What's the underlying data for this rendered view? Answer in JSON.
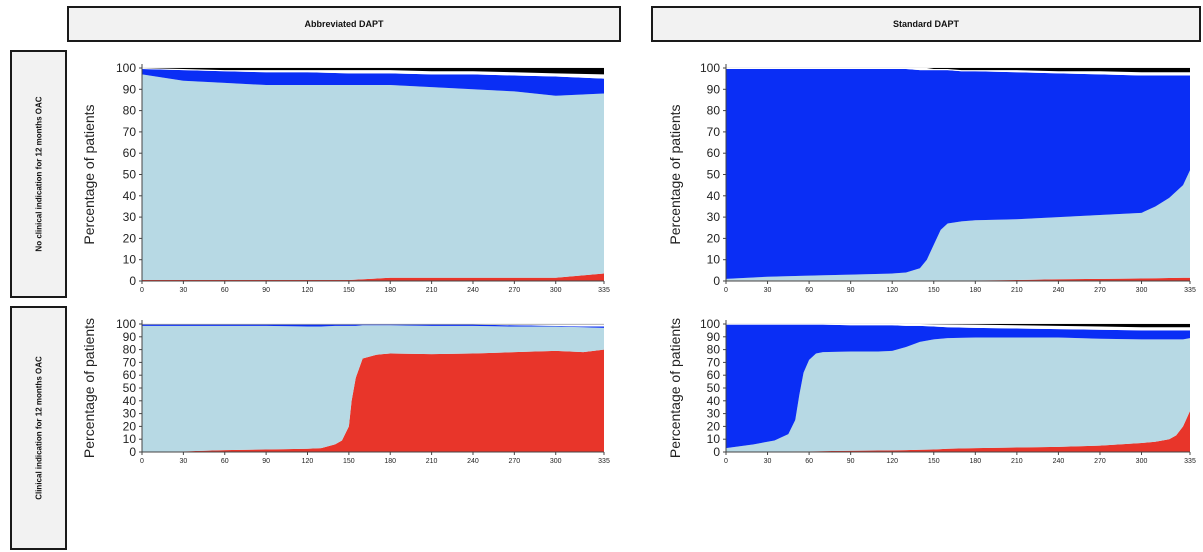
{
  "columns": [
    "Abbreviated DAPT",
    "Standard DAPT"
  ],
  "rows": [
    "No clinical indication for 12 months OAC",
    "Clinical indication for 12 months OAC"
  ],
  "colors": {
    "red": "#e8352a",
    "lightblue": "#b7d9e4",
    "blue": "#0a2ef5",
    "white": "#ffffff",
    "black": "#000000"
  },
  "chart_data": [
    {
      "type": "area",
      "panel": "Abbreviated DAPT / No clinical indication for 12 months OAC",
      "ylabel": "Percentage of patients",
      "ylim": [
        0,
        100
      ],
      "xlim": [
        0,
        335
      ],
      "x_ticks": [
        0,
        30,
        60,
        90,
        120,
        150,
        180,
        210,
        240,
        270,
        300,
        335
      ],
      "y_ticks": [
        0,
        10,
        20,
        30,
        40,
        50,
        60,
        70,
        80,
        90,
        100
      ],
      "x": [
        0,
        30,
        60,
        90,
        120,
        150,
        180,
        210,
        240,
        270,
        300,
        335
      ],
      "boundaries": [
        [
          0.5,
          0.5,
          0.5,
          0.5,
          0.5,
          0.5,
          1.5,
          1.5,
          1.5,
          1.5,
          1.5,
          3.5
        ],
        [
          97,
          94,
          93,
          92,
          92,
          92,
          92,
          91,
          90,
          89,
          87,
          88
        ],
        [
          99.5,
          99,
          98.5,
          98,
          98,
          97.5,
          97.5,
          97,
          97,
          96.5,
          96,
          95
        ],
        [
          100,
          99.5,
          99,
          99,
          99,
          99,
          99,
          98.5,
          98.5,
          98,
          97.5,
          97
        ]
      ]
    },
    {
      "type": "area",
      "panel": "Standard DAPT / No clinical indication for 12 months OAC",
      "ylabel": "Percentage of patients",
      "ylim": [
        0,
        100
      ],
      "xlim": [
        0,
        335
      ],
      "x_ticks": [
        0,
        30,
        60,
        90,
        120,
        150,
        180,
        210,
        240,
        270,
        300,
        335
      ],
      "y_ticks": [
        0,
        10,
        20,
        30,
        40,
        50,
        60,
        70,
        80,
        90,
        100
      ],
      "x": [
        0,
        30,
        60,
        90,
        120,
        130,
        140,
        145,
        150,
        155,
        160,
        170,
        180,
        210,
        240,
        270,
        300,
        310,
        320,
        330,
        335
      ],
      "boundaries": [
        [
          0.3,
          0.3,
          0.3,
          0.3,
          0.3,
          0.3,
          0.3,
          0.3,
          0.3,
          0.3,
          0.3,
          0.3,
          0.3,
          0.5,
          0.8,
          1,
          1.2,
          1.3,
          1.4,
          1.5,
          1.5
        ],
        [
          1,
          2,
          2.5,
          3,
          3.5,
          4,
          6,
          10,
          17,
          24,
          27,
          28,
          28.5,
          29,
          30,
          31,
          32,
          35,
          39,
          45,
          52
        ],
        [
          99.5,
          99.5,
          99.5,
          99.5,
          99.5,
          99.5,
          99,
          99,
          99,
          99,
          99,
          98.5,
          98.5,
          98,
          97.5,
          97,
          96.5,
          96.5,
          96.5,
          96.5,
          96.5
        ],
        [
          100,
          100,
          100,
          100,
          100,
          100,
          100,
          100,
          99.5,
          99.5,
          99.5,
          99,
          99,
          99,
          98.5,
          98.5,
          98,
          98,
          98,
          98,
          98
        ]
      ]
    },
    {
      "type": "area",
      "panel": "Abbreviated DAPT / Clinical indication for 12 months OAC",
      "ylabel": "Percentage of patients",
      "ylim": [
        0,
        100
      ],
      "xlim": [
        0,
        335
      ],
      "x_ticks": [
        0,
        30,
        60,
        90,
        120,
        150,
        180,
        210,
        240,
        270,
        300,
        335
      ],
      "y_ticks": [
        0,
        10,
        20,
        30,
        40,
        50,
        60,
        70,
        80,
        90,
        100
      ],
      "x": [
        0,
        30,
        60,
        90,
        120,
        130,
        140,
        145,
        150,
        152,
        155,
        160,
        170,
        180,
        210,
        240,
        270,
        300,
        320,
        335
      ],
      "boundaries": [
        [
          0.3,
          0.5,
          1.5,
          2,
          2.5,
          3,
          6,
          9,
          20,
          40,
          58,
          73,
          76,
          77,
          76.5,
          77,
          78,
          79,
          78,
          80
        ],
        [
          98.5,
          98.5,
          98.5,
          98.5,
          98,
          98,
          98.5,
          98.5,
          98.5,
          98.5,
          98.5,
          99,
          99,
          99,
          98.5,
          98.5,
          98,
          98,
          97.5,
          97
        ],
        [
          99.5,
          99.5,
          99.5,
          99.5,
          99.5,
          99.5,
          99.5,
          99.5,
          99.5,
          99.5,
          99.5,
          99.5,
          99.5,
          99.5,
          99.5,
          99.5,
          99,
          98.5,
          98,
          98
        ],
        [
          99.8,
          99.8,
          99.8,
          99.8,
          99.8,
          99.8,
          99.8,
          99.8,
          99.8,
          99.8,
          99.8,
          99.8,
          99.8,
          99.8,
          99.8,
          99.8,
          99.8,
          99.8,
          99.8,
          99.8
        ]
      ]
    },
    {
      "type": "area",
      "panel": "Standard DAPT / Clinical indication for 12 months OAC",
      "ylabel": "Percentage of patients",
      "ylim": [
        0,
        100
      ],
      "xlim": [
        0,
        335
      ],
      "x_ticks": [
        0,
        30,
        60,
        90,
        120,
        150,
        180,
        210,
        240,
        270,
        300,
        335
      ],
      "y_ticks": [
        0,
        10,
        20,
        30,
        40,
        50,
        60,
        70,
        80,
        90,
        100
      ],
      "x": [
        0,
        20,
        35,
        45,
        50,
        53,
        56,
        60,
        65,
        70,
        90,
        110,
        120,
        130,
        140,
        150,
        160,
        180,
        210,
        240,
        270,
        300,
        310,
        320,
        325,
        330,
        335
      ],
      "boundaries": [
        [
          0.3,
          0.3,
          0.4,
          0.4,
          0.5,
          0.5,
          0.5,
          0.5,
          0.6,
          0.7,
          1,
          1.2,
          1.3,
          1.5,
          1.8,
          2,
          2.5,
          3,
          3.5,
          4,
          5,
          7,
          8,
          10,
          13,
          20,
          32
        ],
        [
          3,
          6,
          9,
          14,
          25,
          45,
          62,
          72,
          77,
          78,
          78.5,
          78.5,
          79,
          82,
          86,
          88,
          89,
          89.5,
          89.5,
          89.5,
          88.5,
          88,
          88,
          88,
          88,
          88,
          89
        ],
        [
          99.5,
          99.5,
          99.5,
          99.5,
          99.5,
          99.5,
          99.5,
          99.5,
          99.5,
          99.5,
          99,
          99,
          99,
          98.5,
          98.5,
          98,
          97.5,
          97,
          96.5,
          96,
          95.5,
          95,
          95,
          95,
          95,
          95,
          95
        ],
        [
          100,
          100,
          100,
          100,
          100,
          100,
          100,
          100,
          100,
          100,
          100,
          100,
          100,
          100,
          100,
          99.8,
          99.7,
          99.5,
          99,
          98.5,
          98,
          97.5,
          97.5,
          97.5,
          97.5,
          97.5,
          97.5
        ]
      ]
    }
  ]
}
